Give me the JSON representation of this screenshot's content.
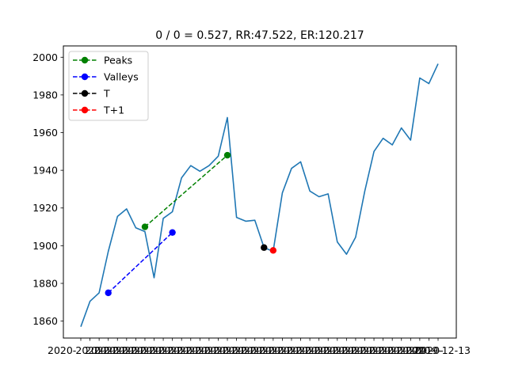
{
  "chart_data": {
    "type": "line",
    "title": "0 / 0 = 0.527, RR:47.522, ER:120.217",
    "xlabel": "",
    "ylabel": "",
    "ylim": [
      1851,
      2006
    ],
    "yticks": [
      1860,
      1880,
      1900,
      1920,
      1940,
      1960,
      1980,
      2000
    ],
    "grid": false,
    "legend_position": "top-left",
    "x_first_label": "2020-",
    "x_last_label": "2019-12-13",
    "main_series": {
      "color": "#1f77b4",
      "values": [
        1857,
        1870.5,
        1875,
        1897,
        1915.5,
        1919.5,
        1909.5,
        1907.5,
        1883,
        1914.5,
        1918,
        1936,
        1942.5,
        1939.5,
        1942.5,
        1947.5,
        1968,
        1915,
        1913,
        1913.5,
        1899,
        1897,
        1928,
        1941,
        1944.5,
        1929,
        1926,
        1927.5,
        1902,
        1895.5,
        1904.5,
        1929,
        1950,
        1957,
        1953.5,
        1962.5,
        1956,
        1989,
        1986,
        1996.5
      ]
    },
    "markers": [
      {
        "name": "Peaks",
        "color": "#008000",
        "points": [
          [
            7,
            1910
          ],
          [
            16,
            1948
          ]
        ]
      },
      {
        "name": "Valleys",
        "color": "#0000ff",
        "points": [
          [
            3,
            1875
          ],
          [
            10,
            1907
          ]
        ]
      },
      {
        "name": "T",
        "color": "#000000",
        "points": [
          [
            20,
            1899
          ]
        ]
      },
      {
        "name": "T+1",
        "color": "#ff0000",
        "points": [
          [
            21,
            1897.5
          ]
        ]
      }
    ]
  }
}
